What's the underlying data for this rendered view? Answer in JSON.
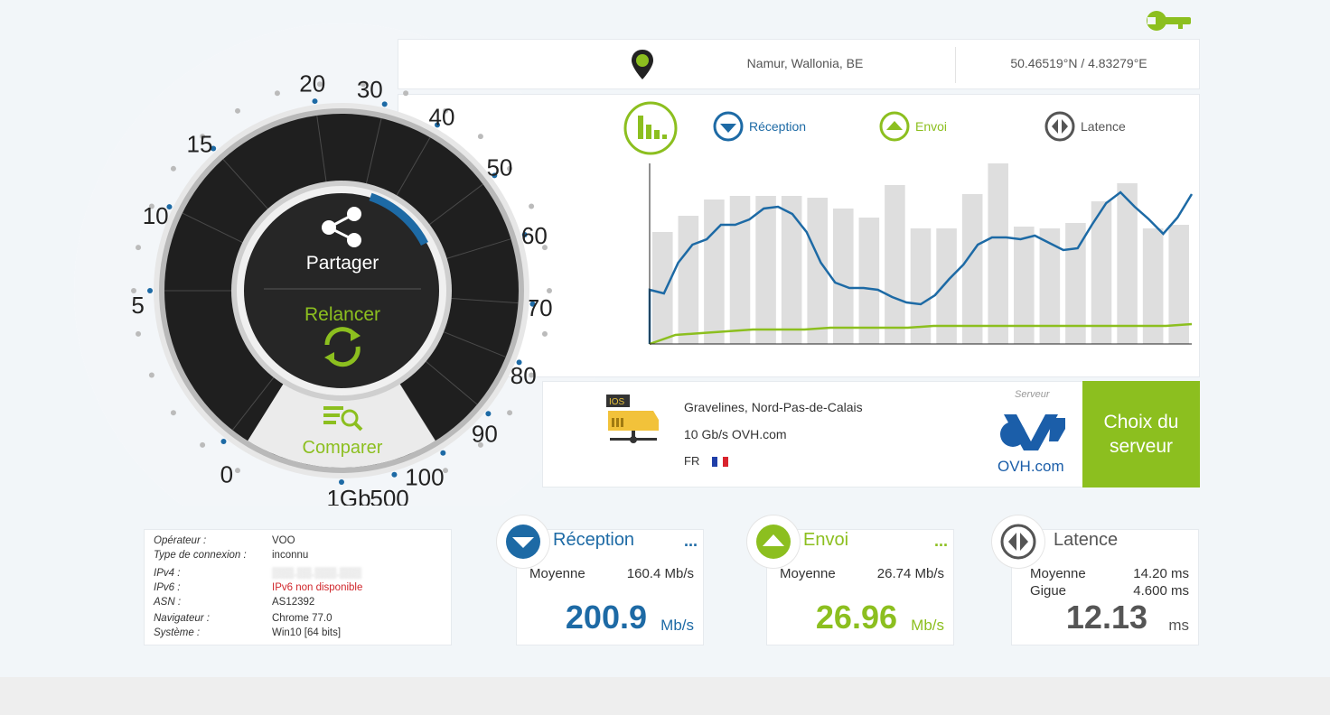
{
  "location": {
    "city": "Namur, Wallonia, BE",
    "coordinates": "50.46519°N / 4.83279°E"
  },
  "gauge": {
    "share_label": "Partager",
    "restart_label": "Relancer",
    "compare_label": "Comparer",
    "scale_labels": [
      "0",
      "5",
      "10",
      "15",
      "20",
      "30",
      "40",
      "50",
      "60",
      "70",
      "80",
      "90",
      "100",
      "500",
      "1Gb"
    ]
  },
  "legend": {
    "download": "Réception",
    "upload": "Envoi",
    "latency": "Latence"
  },
  "chart_data": {
    "type": "bar",
    "bars_relative": [
      0.62,
      0.71,
      0.8,
      0.82,
      0.82,
      0.82,
      0.81,
      0.75,
      0.7,
      0.88,
      0.64,
      0.64,
      0.83,
      1.0,
      0.65,
      0.64,
      0.67,
      0.79,
      0.89,
      0.64,
      0.66
    ],
    "download_line": [
      0.3,
      0.28,
      0.45,
      0.55,
      0.58,
      0.66,
      0.66,
      0.69,
      0.75,
      0.76,
      0.72,
      0.62,
      0.45,
      0.34,
      0.31,
      0.31,
      0.3,
      0.26,
      0.23,
      0.22,
      0.27,
      0.36,
      0.44,
      0.55,
      0.59,
      0.59,
      0.58,
      0.6,
      0.56,
      0.52,
      0.53,
      0.66,
      0.78,
      0.84,
      0.76,
      0.69,
      0.61,
      0.7,
      0.83
    ],
    "upload_line": [
      0.0,
      0.05,
      0.06,
      0.07,
      0.08,
      0.08,
      0.08,
      0.09,
      0.09,
      0.09,
      0.09,
      0.1,
      0.1,
      0.1,
      0.1,
      0.1,
      0.1,
      0.1,
      0.1,
      0.1,
      0.1,
      0.11
    ]
  },
  "server": {
    "label": "Serveur",
    "name": "Gravelines, Nord-Pas-de-Calais",
    "speed": "10 Gb/s OVH.com",
    "country": "FR",
    "logo_text": "OVH.com",
    "ios_tag": "IOS",
    "choose_label": "Choix du serveur"
  },
  "info": {
    "rows": [
      {
        "k": "Opérateur :",
        "v": "VOO"
      },
      {
        "k": "Type de connexion :",
        "v": "inconnu"
      },
      {
        "k": "IPv4 :",
        "v": "▒▒▒.▒▒.▒▒▒.▒▒▒"
      },
      {
        "k": "IPv6 :",
        "v": "IPv6 non disponible"
      },
      {
        "k": "ASN :",
        "v": "AS12392"
      },
      {
        "k": "Navigateur :",
        "v": "Chrome 77.0"
      },
      {
        "k": "Système :",
        "v": "Win10 [64 bits]"
      }
    ]
  },
  "cards": {
    "download": {
      "title": "Réception",
      "avg_label": "Moyenne",
      "avg_value": "160.4 Mb/s",
      "big": "200.9",
      "unit": "Mb/s",
      "dots": "..."
    },
    "upload": {
      "title": "Envoi",
      "avg_label": "Moyenne",
      "avg_value": "26.74 Mb/s",
      "big": "26.96",
      "unit": "Mb/s",
      "dots": "..."
    },
    "latency": {
      "title": "Latence",
      "avg_label": "Moyenne",
      "avg_value": "14.20 ms",
      "jitter_label": "Gigue",
      "jitter_value": "4.600 ms",
      "big": "12.13",
      "unit": "ms"
    }
  },
  "colors": {
    "blue": "#1d6aa5",
    "green": "#8cbf1f",
    "gray": "#555555",
    "bar": "#dedede"
  }
}
